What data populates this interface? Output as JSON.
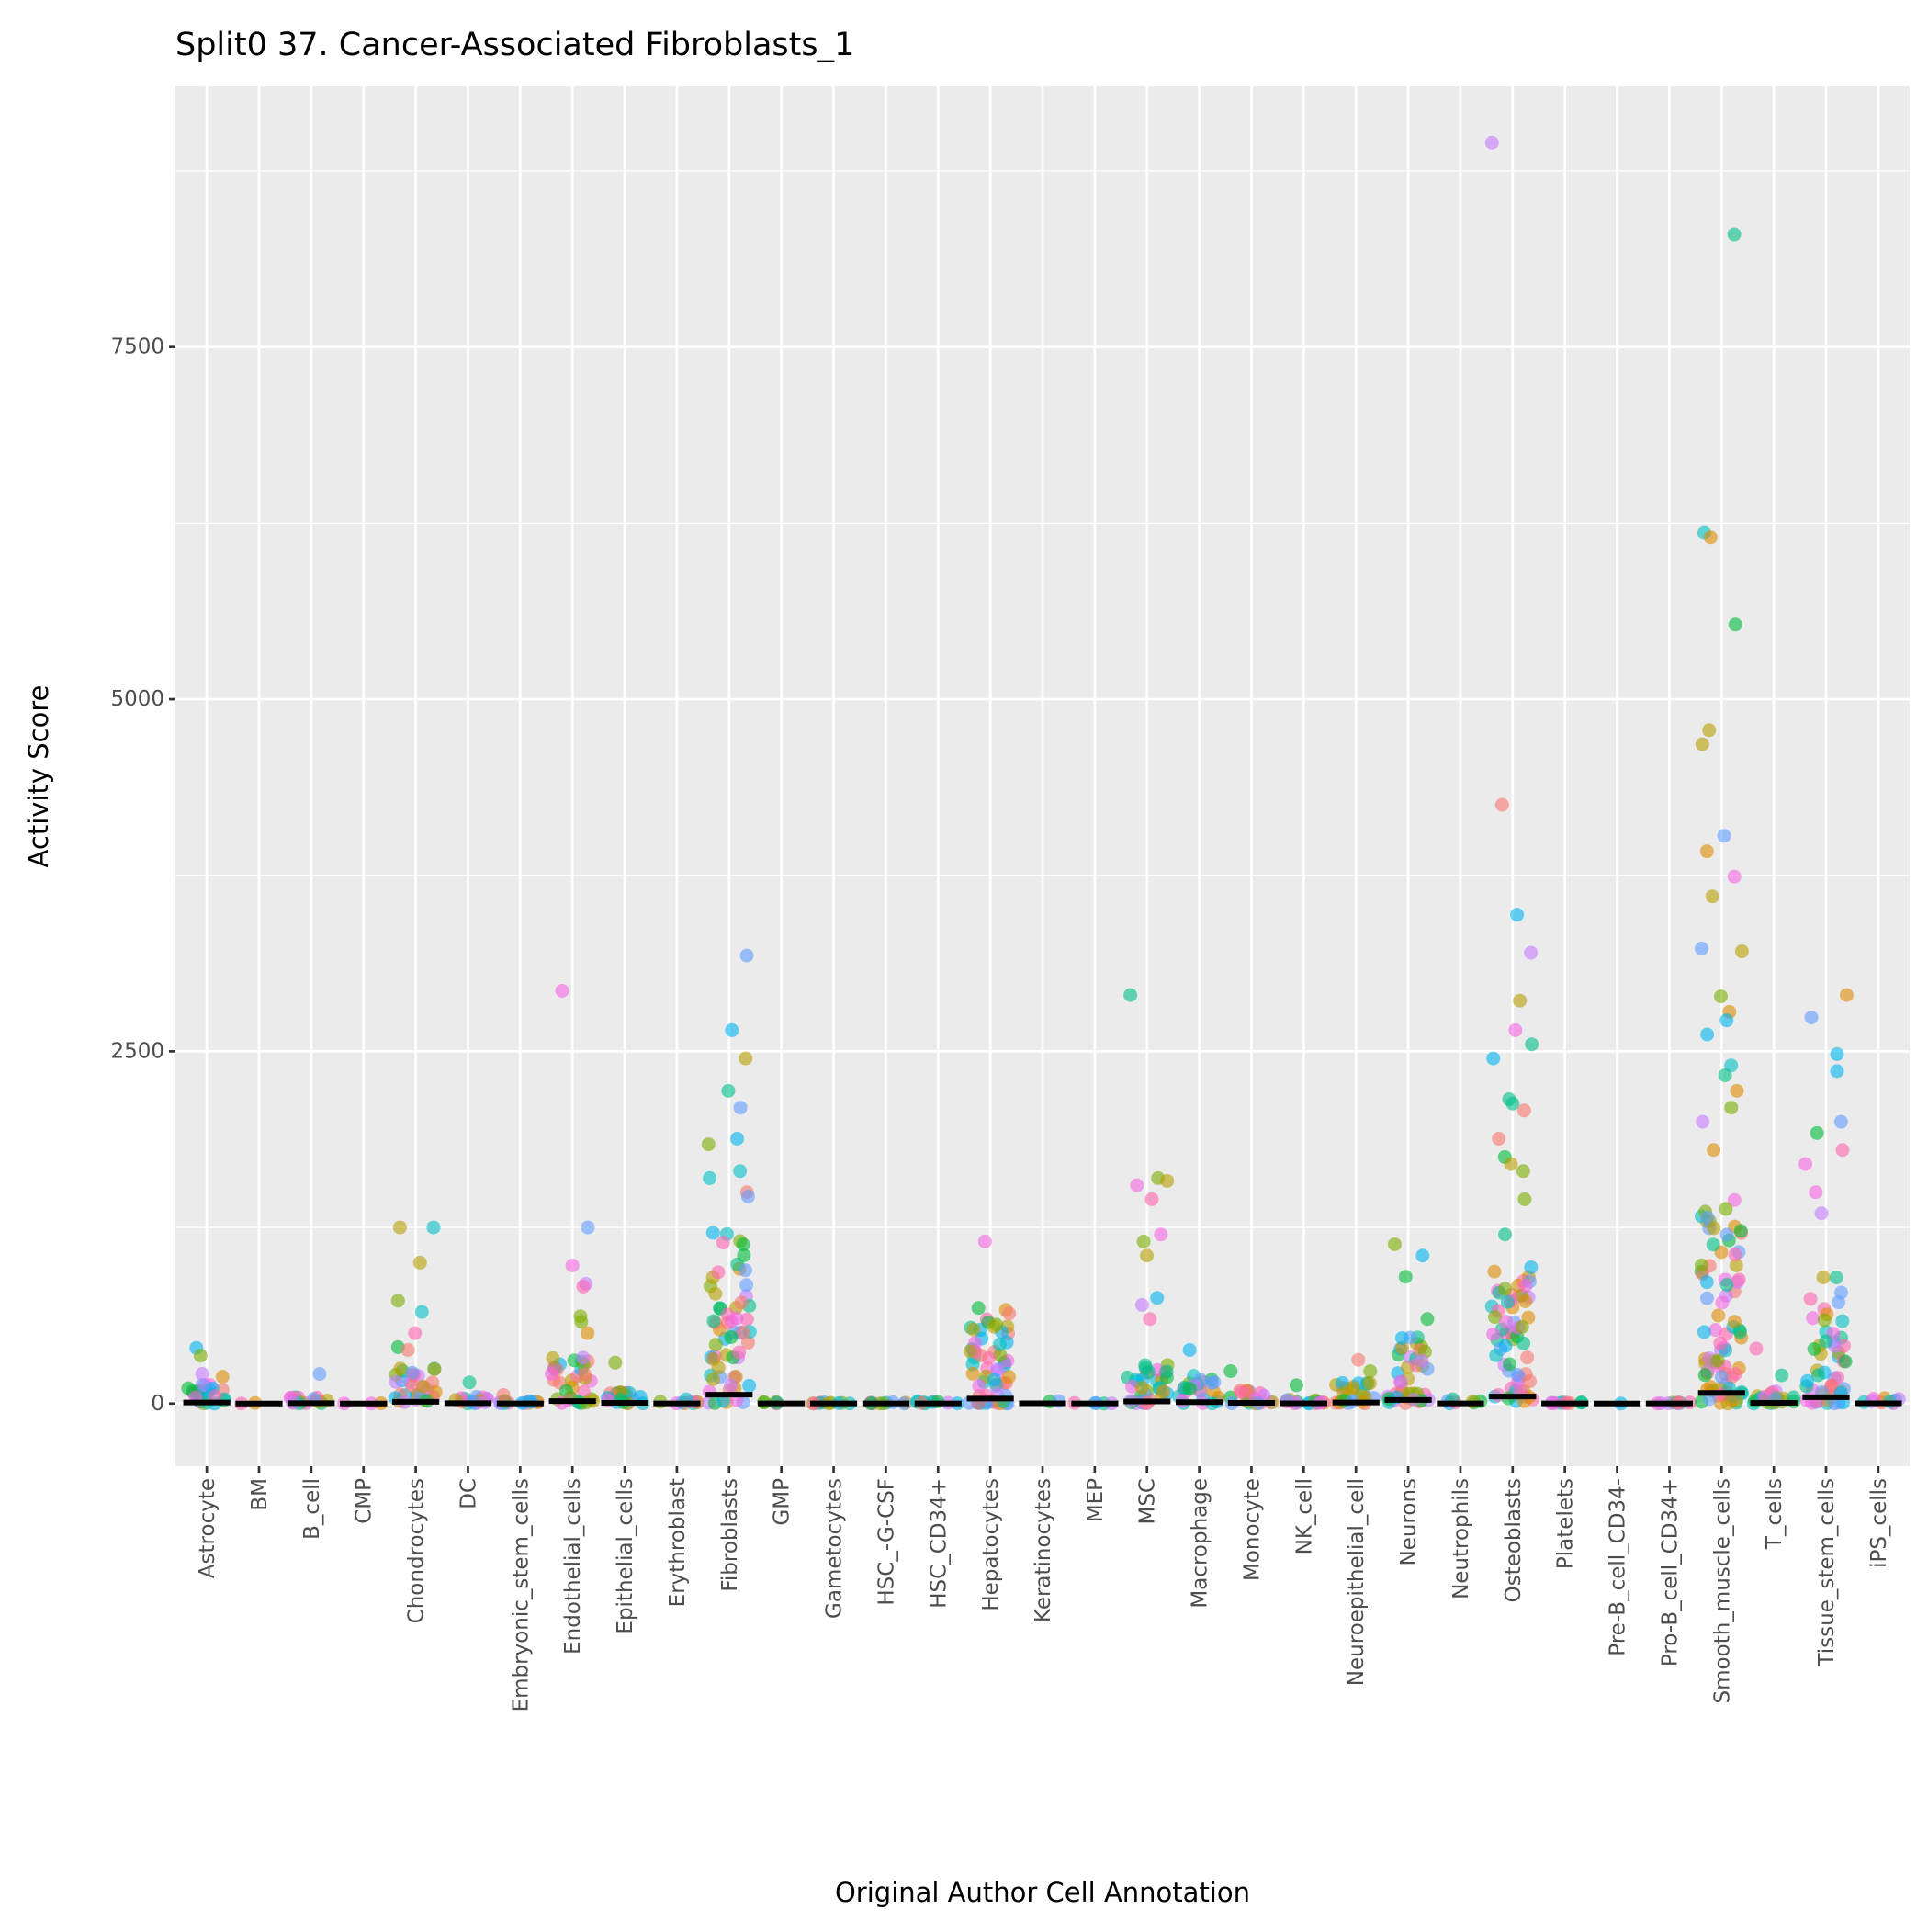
{
  "chart_data": {
    "type": "scatter",
    "title": "Split0 37. Cancer-Associated Fibroblasts_1",
    "xlabel": "Original Author Cell Annotation",
    "ylabel": "Activity Score",
    "ylim": [
      -445,
      9350
    ],
    "yticks": [
      0,
      2500,
      5000,
      7500
    ],
    "grid": true,
    "legend": "none",
    "palette": [
      "#F8766D",
      "#DE8C00",
      "#B79F00",
      "#7CAE00",
      "#00BA38",
      "#00C08B",
      "#00BFC4",
      "#00B4F0",
      "#619CFF",
      "#C77CFF",
      "#F564E3",
      "#FF64B0"
    ],
    "categories": [
      {
        "name": "Astrocyte",
        "bulk": 150,
        "n": 25,
        "outliers": [
          395,
          340,
          210,
          190
        ]
      },
      {
        "name": "BM",
        "bulk": 5,
        "n": 2,
        "outliers": []
      },
      {
        "name": "B_cell",
        "bulk": 50,
        "n": 15,
        "outliers": [
          210
        ]
      },
      {
        "name": "CMP",
        "bulk": 5,
        "n": 3,
        "outliers": []
      },
      {
        "name": "Chondrocytes",
        "bulk": 250,
        "n": 30,
        "outliers": [
          1250,
          1250,
          1000,
          730,
          650,
          500,
          400,
          380
        ]
      },
      {
        "name": "DC",
        "bulk": 50,
        "n": 15,
        "outliers": [
          150
        ]
      },
      {
        "name": "Embryonic_stem_cells",
        "bulk": 20,
        "n": 15,
        "outliers": [
          60
        ]
      },
      {
        "name": "Endothelial_cells",
        "bulk": 350,
        "n": 35,
        "outliers": [
          2930,
          1250,
          980,
          850,
          830,
          620,
          580,
          500
        ]
      },
      {
        "name": "Epithelial_cells",
        "bulk": 100,
        "n": 20,
        "outliers": [
          290
        ]
      },
      {
        "name": "Erythroblast",
        "bulk": 20,
        "n": 8,
        "outliers": [
          30
        ]
      },
      {
        "name": "Fibroblasts",
        "bulk": 1250,
        "n": 60,
        "outliers": [
          3180,
          2650,
          2450,
          2220,
          2100,
          1880,
          1840,
          1650,
          1600,
          1500,
          1470
        ]
      },
      {
        "name": "GMP",
        "bulk": 10,
        "n": 6,
        "outliers": []
      },
      {
        "name": "Gametocytes",
        "bulk": 10,
        "n": 10,
        "outliers": []
      },
      {
        "name": "HSC_-G-CSF",
        "bulk": 10,
        "n": 10,
        "outliers": []
      },
      {
        "name": "HSC_CD34+",
        "bulk": 20,
        "n": 10,
        "outliers": []
      },
      {
        "name": "Hepatocytes",
        "bulk": 700,
        "n": 60,
        "outliers": [
          1150
        ]
      },
      {
        "name": "Keratinocytes",
        "bulk": 30,
        "n": 2,
        "outliers": []
      },
      {
        "name": "MEP",
        "bulk": 10,
        "n": 5,
        "outliers": []
      },
      {
        "name": "MSC",
        "bulk": 300,
        "n": 35,
        "outliers": [
          2900,
          1600,
          1580,
          1550,
          1450,
          1200,
          1150,
          1050,
          750,
          700,
          600
        ]
      },
      {
        "name": "Macrophage",
        "bulk": 200,
        "n": 25,
        "outliers": [
          380
        ]
      },
      {
        "name": "Monocyte",
        "bulk": 100,
        "n": 20,
        "outliers": [
          230
        ]
      },
      {
        "name": "NK_cell",
        "bulk": 30,
        "n": 15,
        "outliers": [
          130
        ]
      },
      {
        "name": "Neuroepithelial_cell",
        "bulk": 150,
        "n": 25,
        "outliers": [
          310,
          230
        ]
      },
      {
        "name": "Neurons",
        "bulk": 500,
        "n": 40,
        "outliers": [
          1130,
          1050,
          900,
          600
        ]
      },
      {
        "name": "Neutrophils",
        "bulk": 20,
        "n": 6,
        "outliers": [
          30
        ]
      },
      {
        "name": "Osteoblasts",
        "bulk": 1000,
        "n": 60,
        "outliers": [
          8950,
          4250,
          3470,
          3200,
          2860,
          2650,
          2550,
          2450,
          2160,
          2130,
          2080,
          1880,
          1750,
          1700,
          1650,
          1450,
          1200
        ]
      },
      {
        "name": "Platelets",
        "bulk": 10,
        "n": 10,
        "outliers": []
      },
      {
        "name": "Pre-B_cell_CD34-",
        "bulk": 0,
        "n": 1,
        "outliers": []
      },
      {
        "name": "Pro-B_cell_CD34+",
        "bulk": 10,
        "n": 10,
        "outliers": []
      },
      {
        "name": "Smooth_muscle_cells",
        "bulk": 1500,
        "n": 80,
        "outliers": [
          8300,
          6180,
          6150,
          5530,
          4780,
          4680,
          4030,
          3920,
          3740,
          3600,
          3230,
          3210,
          2890,
          2780,
          2720,
          2620,
          2400,
          2330,
          2220,
          2100,
          2000,
          1800
        ]
      },
      {
        "name": "T_cells",
        "bulk": 100,
        "n": 20,
        "outliers": [
          390,
          200
        ]
      },
      {
        "name": "Tissue_stem_cells",
        "bulk": 900,
        "n": 50,
        "outliers": [
          2900,
          2740,
          2480,
          2360,
          2000,
          1920,
          1800,
          1700,
          1500,
          1350
        ]
      },
      {
        "name": "iPS_cells",
        "bulk": 40,
        "n": 10,
        "outliers": []
      }
    ]
  }
}
